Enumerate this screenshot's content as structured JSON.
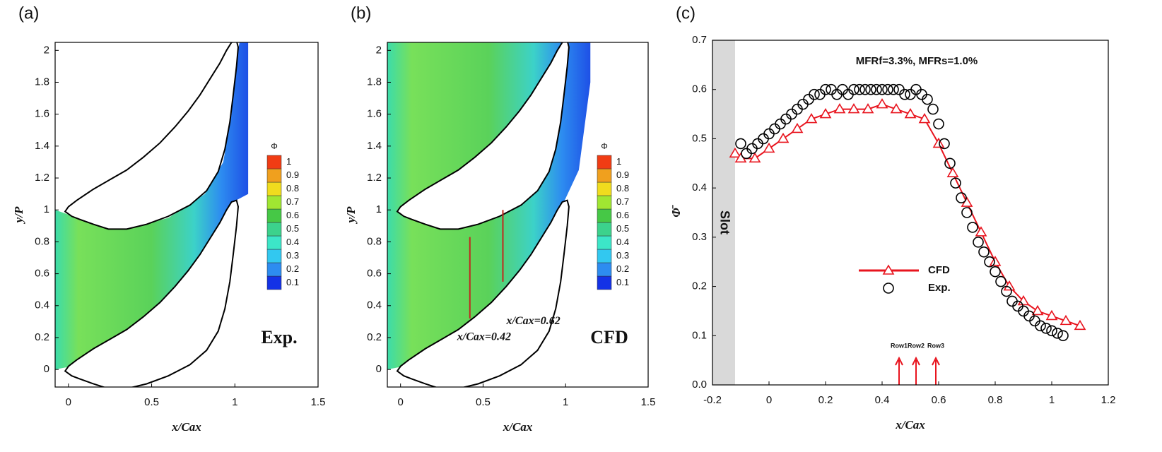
{
  "chart_data": [
    {
      "type": "contour",
      "panel_label": "(a)",
      "xlabel": "x/Cax",
      "ylabel": "y/P",
      "xlim": [
        -0.08,
        1.5
      ],
      "ylim": [
        -0.11,
        2.05
      ],
      "xticks": [
        0,
        0.5,
        1,
        1.5
      ],
      "yticks": [
        0,
        0.2,
        0.4,
        0.6,
        0.8,
        1,
        1.2,
        1.4,
        1.6,
        1.8,
        2
      ],
      "colorbar": {
        "title": "Φ",
        "levels": [
          0.1,
          0.2,
          0.3,
          0.4,
          0.5,
          0.6,
          0.7,
          0.8,
          0.9,
          1
        ],
        "colors": [
          "#1432e6",
          "#2d8cf0",
          "#32c8f0",
          "#3ce6c8",
          "#3cd28c",
          "#46c846",
          "#a0e632",
          "#f0dc1e",
          "#f0a01e",
          "#f03c14"
        ]
      },
      "annotation": "Exp."
    },
    {
      "type": "contour",
      "panel_label": "(b)",
      "xlabel": "x/Cax",
      "ylabel": "y/P",
      "xlim": [
        -0.08,
        1.5
      ],
      "ylim": [
        -0.11,
        2.05
      ],
      "xticks": [
        0,
        0.5,
        1,
        1.5
      ],
      "yticks": [
        0,
        0.2,
        0.4,
        0.6,
        0.8,
        1,
        1.2,
        1.4,
        1.6,
        1.8,
        2
      ],
      "colorbar": {
        "title": "Φ",
        "levels": [
          0.1,
          0.2,
          0.3,
          0.4,
          0.5,
          0.6,
          0.7,
          0.8,
          0.9,
          1
        ],
        "colors": [
          "#1432e6",
          "#2d8cf0",
          "#32c8f0",
          "#3ce6c8",
          "#3cd28c",
          "#46c846",
          "#a0e632",
          "#f0dc1e",
          "#f0a01e",
          "#f03c14"
        ]
      },
      "annotation": "CFD",
      "cuts": [
        {
          "x": 0.42,
          "label": "x/Cax=0.42"
        },
        {
          "x": 0.62,
          "label": "x/Cax=0.62"
        }
      ]
    },
    {
      "type": "line",
      "panel_label": "(c)",
      "xlabel": "x/Cax",
      "ylabel": "Φ̄",
      "xlim": [
        -0.2,
        1.2
      ],
      "ylim": [
        0,
        0.7
      ],
      "xticks": [
        -0.2,
        0,
        0.2,
        0.4,
        0.6,
        0.8,
        1,
        1.2
      ],
      "yticks": [
        {
          "value": 0,
          "label": "0.0"
        },
        0.1,
        0.2,
        0.3,
        0.4,
        0.5,
        0.6,
        0.7
      ],
      "annotation": "MFRf=3.3%, MFRs=1.0%",
      "slot": {
        "label": "Slot",
        "xlim": [
          -0.2,
          -0.12
        ],
        "color": "#d9d9d9"
      },
      "rows": [
        {
          "label": "Row1",
          "x": 0.46
        },
        {
          "label": "Row2",
          "x": 0.52
        },
        {
          "label": "Row3",
          "x": 0.59
        }
      ],
      "series": [
        {
          "name": "CFD",
          "color": "#e8141e",
          "marker": "triangle",
          "line": true,
          "x": [
            -0.12,
            -0.1,
            -0.05,
            0,
            0.05,
            0.1,
            0.15,
            0.2,
            0.25,
            0.3,
            0.35,
            0.4,
            0.45,
            0.5,
            0.55,
            0.6,
            0.65,
            0.7,
            0.75,
            0.8,
            0.85,
            0.9,
            0.95,
            1.0,
            1.05,
            1.1
          ],
          "values": [
            0.47,
            0.46,
            0.46,
            0.48,
            0.5,
            0.52,
            0.54,
            0.55,
            0.56,
            0.56,
            0.56,
            0.57,
            0.56,
            0.55,
            0.54,
            0.49,
            0.43,
            0.37,
            0.31,
            0.25,
            0.2,
            0.17,
            0.15,
            0.14,
            0.13,
            0.12
          ]
        },
        {
          "name": "Exp.",
          "color": "#000000",
          "marker": "circle",
          "line": false,
          "x": [
            -0.1,
            -0.08,
            -0.06,
            -0.04,
            -0.02,
            0,
            0.02,
            0.04,
            0.06,
            0.08,
            0.1,
            0.12,
            0.14,
            0.16,
            0.18,
            0.2,
            0.22,
            0.24,
            0.26,
            0.28,
            0.3,
            0.32,
            0.34,
            0.36,
            0.38,
            0.4,
            0.42,
            0.44,
            0.46,
            0.48,
            0.5,
            0.52,
            0.54,
            0.56,
            0.58,
            0.6,
            0.62,
            0.64,
            0.66,
            0.68,
            0.7,
            0.72,
            0.74,
            0.76,
            0.78,
            0.8,
            0.82,
            0.84,
            0.86,
            0.88,
            0.9,
            0.92,
            0.94,
            0.96,
            0.98,
            1.0,
            1.02,
            1.04
          ],
          "values": [
            0.49,
            0.47,
            0.48,
            0.49,
            0.5,
            0.51,
            0.52,
            0.53,
            0.54,
            0.55,
            0.56,
            0.57,
            0.58,
            0.59,
            0.59,
            0.6,
            0.6,
            0.59,
            0.6,
            0.59,
            0.6,
            0.6,
            0.6,
            0.6,
            0.6,
            0.6,
            0.6,
            0.6,
            0.6,
            0.59,
            0.59,
            0.6,
            0.59,
            0.58,
            0.56,
            0.53,
            0.49,
            0.45,
            0.41,
            0.38,
            0.35,
            0.32,
            0.29,
            0.27,
            0.25,
            0.23,
            0.21,
            0.19,
            0.17,
            0.16,
            0.15,
            0.14,
            0.13,
            0.12,
            0.115,
            0.11,
            0.105,
            0.1
          ]
        }
      ]
    }
  ]
}
